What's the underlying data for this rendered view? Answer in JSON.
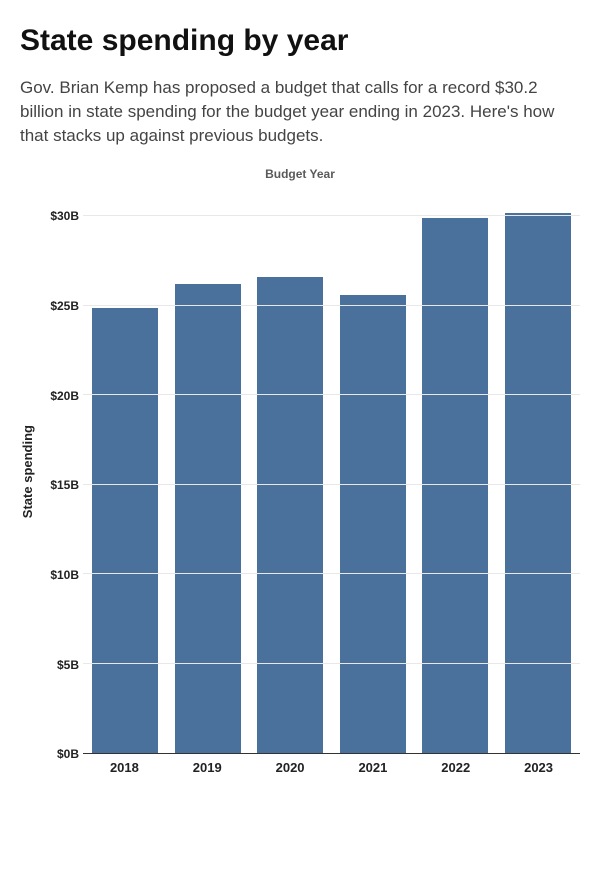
{
  "title": "State spending by year",
  "subtitle": "Gov. Brian Kemp has proposed a budget that calls for a record $30.2 billion in state spending for the budget year ending in 2023. Here's how that stacks up against previous budgets.",
  "chart": {
    "type": "bar",
    "top_label": "Budget Year",
    "y_axis_title": "State spending",
    "categories": [
      "2018",
      "2019",
      "2020",
      "2021",
      "2022",
      "2023"
    ],
    "values": [
      24.9,
      26.2,
      26.6,
      25.6,
      29.9,
      30.2
    ],
    "ylim": [
      0,
      31.5
    ],
    "yticks": [
      0,
      5,
      10,
      15,
      20,
      25,
      30
    ],
    "ytick_labels": [
      "$0B",
      "$5B",
      "$10B",
      "$15B",
      "$20B",
      "$25B",
      "$30B"
    ],
    "bar_color": "#4a719c",
    "background_color": "#ffffff",
    "grid_color": "#e8e8e8",
    "bar_width_pct": 82,
    "title_fontsize": 30,
    "subtitle_fontsize": 17,
    "tick_fontsize": 12,
    "axis_label_fontsize": 13,
    "text_color": "#222222"
  }
}
